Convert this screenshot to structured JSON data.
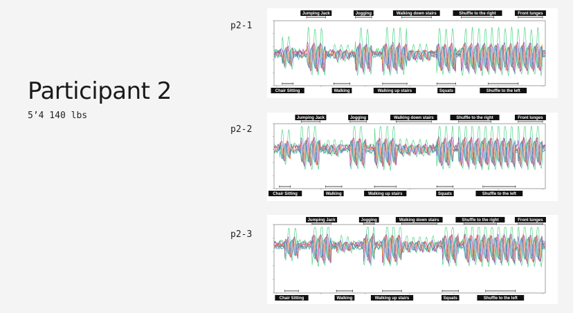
{
  "header": {
    "title": "Participant 2",
    "subtitle": "5’4 140 lbs"
  },
  "colors": {
    "series": [
      "#2ecc71",
      "#7b3fb8",
      "#e0447a",
      "#f08a24",
      "#3a7bd5",
      "#2a9d8f"
    ],
    "label_bg": "#111111",
    "label_text": "#ffffff"
  },
  "chart_data": [
    {
      "type": "line",
      "panel_label": "p2-1",
      "activities": [
        {
          "name": "Chair Sitting",
          "pos": "bottom",
          "start": 0.03,
          "end": 0.07
        },
        {
          "name": "Jumping Jack",
          "pos": "top",
          "start": 0.12,
          "end": 0.19
        },
        {
          "name": "Walking",
          "pos": "bottom",
          "start": 0.22,
          "end": 0.28
        },
        {
          "name": "Jogging",
          "pos": "top",
          "start": 0.3,
          "end": 0.36
        },
        {
          "name": "Walking up stairs",
          "pos": "bottom",
          "start": 0.4,
          "end": 0.49
        },
        {
          "name": "Walking down stairs",
          "pos": "top",
          "start": 0.47,
          "end": 0.58
        },
        {
          "name": "Squats",
          "pos": "bottom",
          "start": 0.6,
          "end": 0.67
        },
        {
          "name": "Shuffle to the right",
          "pos": "top",
          "start": 0.69,
          "end": 0.81
        },
        {
          "name": "Shuffle to the left",
          "pos": "bottom",
          "start": 0.79,
          "end": 0.9
        },
        {
          "name": "Front lunges",
          "pos": "top",
          "start": 0.9,
          "end": 0.99
        }
      ]
    },
    {
      "type": "line",
      "panel_label": "p2-2",
      "activities": [
        {
          "name": "Chair Sitting",
          "pos": "bottom",
          "start": 0.02,
          "end": 0.06
        },
        {
          "name": "Jumping Jack",
          "pos": "top",
          "start": 0.1,
          "end": 0.17
        },
        {
          "name": "Walking",
          "pos": "bottom",
          "start": 0.19,
          "end": 0.25
        },
        {
          "name": "Jogging",
          "pos": "top",
          "start": 0.28,
          "end": 0.34
        },
        {
          "name": "Walking up stairs",
          "pos": "bottom",
          "start": 0.37,
          "end": 0.45
        },
        {
          "name": "Walking down stairs",
          "pos": "top",
          "start": 0.45,
          "end": 0.58
        },
        {
          "name": "Squats",
          "pos": "bottom",
          "start": 0.6,
          "end": 0.66
        },
        {
          "name": "Shuffle to the right",
          "pos": "top",
          "start": 0.68,
          "end": 0.8
        },
        {
          "name": "Shuffle to the left",
          "pos": "bottom",
          "start": 0.77,
          "end": 0.89
        },
        {
          "name": "Front lunges",
          "pos": "top",
          "start": 0.9,
          "end": 0.99
        }
      ]
    },
    {
      "type": "line",
      "panel_label": "p2-3",
      "activities": [
        {
          "name": "Chair Sitting",
          "pos": "bottom",
          "start": 0.04,
          "end": 0.09
        },
        {
          "name": "Jumping Jack",
          "pos": "top",
          "start": 0.14,
          "end": 0.21
        },
        {
          "name": "Walking",
          "pos": "bottom",
          "start": 0.23,
          "end": 0.29
        },
        {
          "name": "Jogging",
          "pos": "top",
          "start": 0.33,
          "end": 0.37
        },
        {
          "name": "Walking up stairs",
          "pos": "bottom",
          "start": 0.4,
          "end": 0.47
        },
        {
          "name": "Walking down stairs",
          "pos": "top",
          "start": 0.47,
          "end": 0.6
        },
        {
          "name": "Squats",
          "pos": "bottom",
          "start": 0.62,
          "end": 0.68
        },
        {
          "name": "Shuffle to the right",
          "pos": "top",
          "start": 0.7,
          "end": 0.82
        },
        {
          "name": "Shuffle to the left",
          "pos": "bottom",
          "start": 0.78,
          "end": 0.89
        },
        {
          "name": "Front lunges",
          "pos": "top",
          "start": 0.9,
          "end": 0.99
        }
      ]
    }
  ]
}
